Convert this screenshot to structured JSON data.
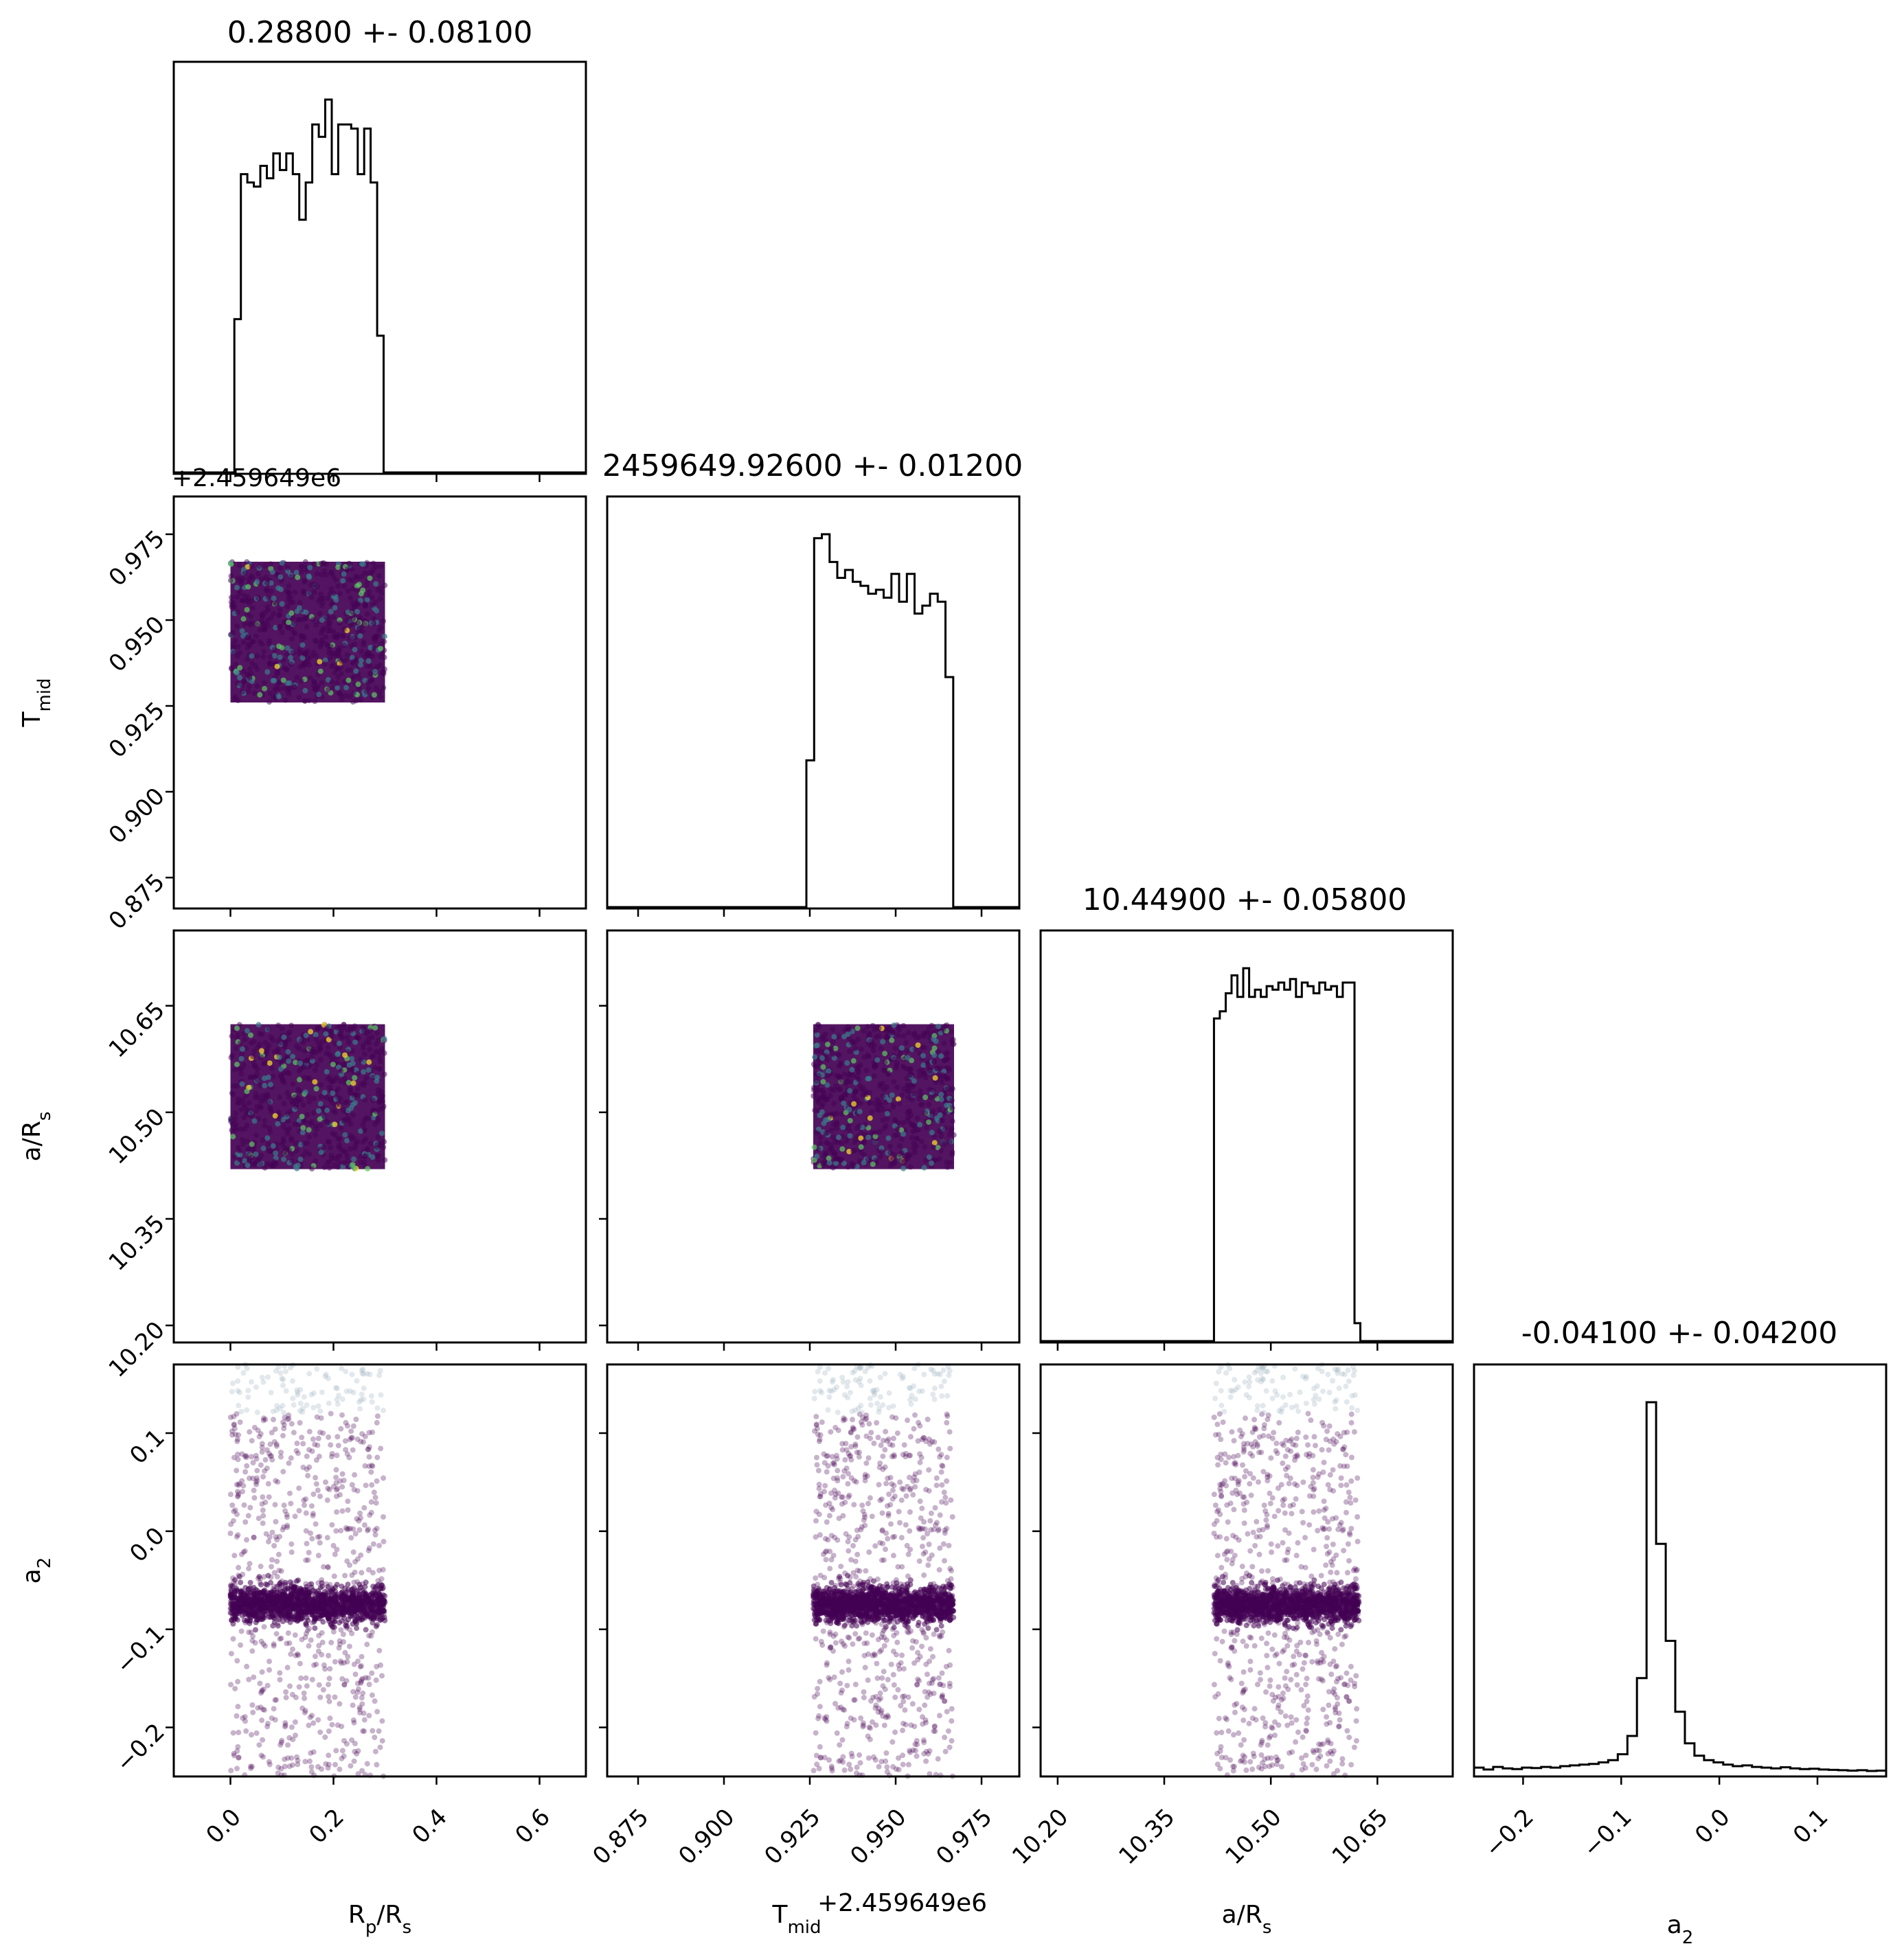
{
  "chart_data": {
    "type": "corner",
    "parameters": [
      {
        "name": "Rp/Rs",
        "label_main": "R",
        "label_sub": "p",
        "label_rest": "/R",
        "label_sub2": "s",
        "title": "0.28800 +- 0.08100",
        "range": [
          -0.11,
          0.69
        ],
        "ticks": [
          "0.0",
          "0.2",
          "0.4",
          "0.6"
        ],
        "tick_values": [
          0.0,
          0.2,
          0.4,
          0.6
        ],
        "offset": "",
        "sample_range": [
          0.0,
          0.3
        ]
      },
      {
        "name": "Tmid",
        "label_main": "T",
        "label_sub": "mid",
        "label_rest": "",
        "label_sub2": "",
        "title": "2459649.92600 +- 0.01200",
        "range": [
          0.866,
          0.986
        ],
        "ticks": [
          "0.875",
          "0.900",
          "0.925",
          "0.950",
          "0.975"
        ],
        "tick_values": [
          0.875,
          0.9,
          0.925,
          0.95,
          0.975
        ],
        "offset": "+2.459649e6",
        "sample_range": [
          0.926,
          0.967
        ]
      },
      {
        "name": "a/Rs",
        "label_main": "a/R",
        "label_sub": "s",
        "label_rest": "",
        "label_sub2": "",
        "title": "10.44900 +- 0.05800",
        "range": [
          10.176,
          10.756
        ],
        "ticks": [
          "10.20",
          "10.35",
          "10.50",
          "10.65"
        ],
        "tick_values": [
          10.2,
          10.35,
          10.5,
          10.65
        ],
        "offset": "",
        "sample_range": [
          10.42,
          10.624
        ]
      },
      {
        "name": "a2",
        "label_main": "a",
        "label_sub": "2",
        "label_rest": "",
        "label_sub2": "",
        "title": "-0.04100 +- 0.04200",
        "range": [
          -0.25,
          0.17
        ],
        "ticks": [
          "−0.2",
          "−0.1",
          "0.0",
          "0.1"
        ],
        "tick_values": [
          -0.2,
          -0.1,
          0.0,
          0.1
        ],
        "offset": "",
        "sample_range": [
          -0.25,
          0.17
        ]
      }
    ],
    "histograms": [
      {
        "parameter": "Rp/Rs",
        "bin_edges_range": [
          -0.005,
          0.31
        ],
        "counts": [
          0,
          0.37,
          0.72,
          0.7,
          0.69,
          0.74,
          0.71,
          0.77,
          0.73,
          0.77,
          0.72,
          0.61,
          0.7,
          0.84,
          0.81,
          0.9,
          0.72,
          0.84,
          0.84,
          0.83,
          0.72,
          0.83,
          0.7,
          0.33,
          0
        ]
      },
      {
        "parameter": "Tmid",
        "bin_edges_range": [
          0.924,
          0.969
        ],
        "counts": [
          0.37,
          0.93,
          0.94,
          0.87,
          0.83,
          0.85,
          0.82,
          0.81,
          0.79,
          0.8,
          0.78,
          0.84,
          0.77,
          0.84,
          0.74,
          0.76,
          0.79,
          0.77,
          0.58,
          0
        ]
      },
      {
        "parameter": "a/Rs",
        "bin_edges_range": [
          10.42,
          10.626
        ],
        "counts": [
          0.9,
          0.92,
          0.97,
          1.02,
          0.96,
          1.04,
          0.96,
          0.98,
          0.96,
          0.99,
          0.98,
          1.0,
          0.98,
          1.01,
          0.96,
          1.0,
          0.99,
          0.97,
          1.0,
          0.98,
          0.99,
          0.96,
          1.0,
          1.0,
          0.05
        ]
      },
      {
        "parameter": "a2",
        "bin_edges_range": [
          -0.25,
          0.17
        ],
        "counts": [
          0.02,
          0.015,
          0.022,
          0.018,
          0.016,
          0.02,
          0.019,
          0.022,
          0.02,
          0.024,
          0.026,
          0.028,
          0.03,
          0.034,
          0.04,
          0.056,
          0.105,
          0.26,
          1.0,
          0.62,
          0.36,
          0.17,
          0.085,
          0.052,
          0.04,
          0.034,
          0.028,
          0.024,
          0.026,
          0.022,
          0.02,
          0.018,
          0.021,
          0.018,
          0.016,
          0.017,
          0.015,
          0.014,
          0.013,
          0.012,
          0.013,
          0.011,
          0.012
        ]
      }
    ],
    "scatter_pairs": [
      {
        "x": "Rp/Rs",
        "y": "Tmid",
        "description": "uniform box",
        "x_span": [
          0.0,
          0.3
        ],
        "y_span": [
          0.926,
          0.967
        ]
      },
      {
        "x": "Rp/Rs",
        "y": "a/Rs",
        "description": "uniform box",
        "x_span": [
          0.0,
          0.3
        ],
        "y_span": [
          10.42,
          10.624
        ]
      },
      {
        "x": "Tmid",
        "y": "a/Rs",
        "description": "uniform box",
        "x_span": [
          0.926,
          0.967
        ],
        "y_span": [
          10.42,
          10.624
        ]
      },
      {
        "x": "Rp/Rs",
        "y": "a2",
        "description": "narrow band near -0.075 with sparse tails",
        "x_span": [
          0.0,
          0.3
        ],
        "y_center": -0.075
      },
      {
        "x": "Tmid",
        "y": "a2",
        "description": "narrow band near -0.075 with sparse tails",
        "x_span": [
          0.926,
          0.967
        ],
        "y_center": -0.075
      },
      {
        "x": "a/Rs",
        "y": "a2",
        "description": "narrow band near -0.075 with sparse tails",
        "x_span": [
          10.42,
          10.624
        ],
        "y_center": -0.075
      }
    ],
    "offset_labels": {
      "row1_y": "+2.459649e6",
      "col1_x": "+2.459649e6"
    },
    "colors": {
      "scatter_main": "#440154",
      "scatter_alt": "#3b7c8c",
      "scatter_light": "#9fb4c0",
      "line": "#000000"
    },
    "grid": false,
    "legend": "none"
  }
}
